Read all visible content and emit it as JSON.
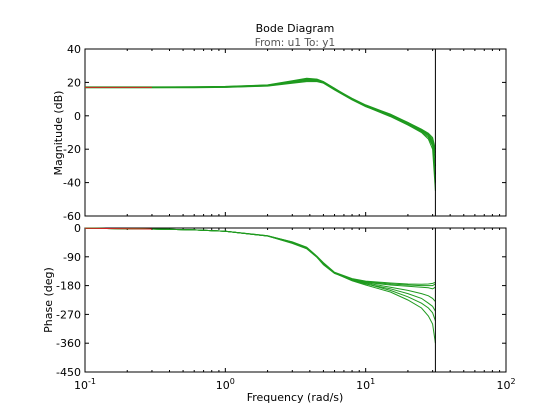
{
  "chart_data": {
    "type": "line",
    "title": "Bode Diagram",
    "subtitle": "From: u1  To: y1",
    "xlabel": "Frequency  (rad/s)",
    "xscale": "log",
    "xlim": [
      0.1,
      100
    ],
    "x_ticks": [
      {
        "value": 0.1,
        "base": "10",
        "exp": "-1"
      },
      {
        "value": 1,
        "base": "10",
        "exp": "0"
      },
      {
        "value": 10,
        "base": "10",
        "exp": "1"
      },
      {
        "value": 100,
        "base": "10",
        "exp": "2"
      }
    ],
    "nyquist_frequency": 31.4,
    "series_colors": {
      "primary": "#d62020",
      "samples": "#1f9a1f",
      "marker": "#000000"
    },
    "magnitude": {
      "ylabel": "Magnitude (dB)",
      "ylim": [
        -60,
        40
      ],
      "yticks": [
        "40",
        "20",
        "0",
        "-20",
        "-40",
        "-60"
      ],
      "ytick_values": [
        40,
        20,
        0,
        -20,
        -40,
        -60
      ]
    },
    "phase": {
      "ylabel": "Phase (deg)",
      "ylim": [
        -450,
        0
      ],
      "yticks": [
        "0",
        "-90",
        "-180",
        "-270",
        "-360",
        "-450"
      ],
      "ytick_values": [
        0,
        -90,
        -180,
        -270,
        -360,
        -450
      ]
    },
    "frequencies": [
      0.1,
      0.3,
      0.6,
      1,
      2,
      3,
      3.8,
      4.5,
      5,
      6,
      8,
      10,
      15,
      20,
      25,
      28,
      30,
      31.4
    ],
    "series": [
      {
        "magnitude": [
          17,
          17,
          17,
          17.2,
          18,
          20,
          21,
          21,
          20,
          16,
          10,
          6,
          0,
          -5,
          -9,
          -12,
          -16,
          -30
        ],
        "phase": [
          -1,
          -3,
          -6,
          -10,
          -25,
          -45,
          -62,
          -90,
          -110,
          -140,
          -160,
          -168,
          -175,
          -178,
          -180,
          -180,
          -180,
          -175
        ]
      },
      {
        "magnitude": [
          17.3,
          17.3,
          17.4,
          17.6,
          18.5,
          21,
          22.5,
          22,
          20.5,
          16.5,
          10,
          5.5,
          -0.5,
          -5.5,
          -10,
          -14,
          -20,
          -45
        ],
        "phase": [
          -1,
          -3,
          -6,
          -10,
          -25,
          -48,
          -65,
          -92,
          -115,
          -142,
          -162,
          -170,
          -178,
          -182,
          -185,
          -187,
          -190,
          -185
        ]
      },
      {
        "magnitude": [
          16.8,
          16.8,
          16.8,
          17,
          17.8,
          19.5,
          20.5,
          20.5,
          19.5,
          15.5,
          9.5,
          5.5,
          0.5,
          -4,
          -8,
          -10.5,
          -13,
          -20
        ],
        "phase": [
          -1,
          -3,
          -6,
          -10,
          -24,
          -43,
          -60,
          -88,
          -108,
          -138,
          -158,
          -166,
          -172,
          -175,
          -176,
          -175,
          -173,
          -170
        ]
      },
      {
        "magnitude": [
          17.1,
          17.1,
          17.2,
          17.4,
          18.3,
          20.5,
          22,
          21.5,
          20.2,
          16.2,
          10,
          6,
          0,
          -5,
          -9.5,
          -13,
          -18,
          -35
        ],
        "phase": [
          -1,
          -3,
          -6,
          -10,
          -25,
          -46,
          -64,
          -91,
          -112,
          -141,
          -164,
          -175,
          -190,
          -205,
          -220,
          -235,
          -245,
          -260
        ]
      },
      {
        "magnitude": [
          17.2,
          17.2,
          17.3,
          17.5,
          18.4,
          20.8,
          22.2,
          21.8,
          20.4,
          16.3,
          10.5,
          6.5,
          1,
          -4,
          -8.5,
          -12,
          -17,
          -40
        ],
        "phase": [
          -1,
          -3,
          -6,
          -10,
          -25,
          -47,
          -64,
          -91,
          -113,
          -141,
          -165,
          -178,
          -200,
          -225,
          -250,
          -275,
          -300,
          -360
        ]
      },
      {
        "magnitude": [
          16.9,
          16.9,
          17,
          17.1,
          17.9,
          19.8,
          21,
          20.8,
          19.8,
          15.8,
          9.8,
          5.8,
          0.5,
          -4.5,
          -8.5,
          -11.5,
          -15,
          -25
        ],
        "phase": [
          -1,
          -3,
          -6,
          -10,
          -24,
          -44,
          -62,
          -89,
          -110,
          -139,
          -162,
          -172,
          -185,
          -195,
          -205,
          -212,
          -220,
          -230
        ]
      },
      {
        "magnitude": [
          17,
          17,
          17.1,
          17.3,
          18.1,
          20.2,
          21.5,
          21.2,
          20,
          16,
          10.2,
          6.2,
          0.8,
          -4.2,
          -8.2,
          -11,
          -14,
          -22
        ],
        "phase": [
          -1,
          -3,
          -6,
          -10,
          -25,
          -45,
          -63,
          -90,
          -111,
          -140,
          -163,
          -174,
          -195,
          -215,
          -235,
          -250,
          -265,
          -290
        ]
      }
    ]
  }
}
